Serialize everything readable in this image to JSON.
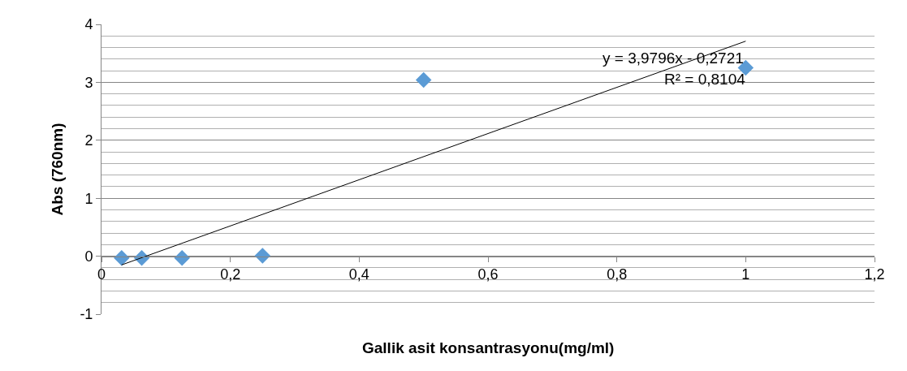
{
  "chart_data": {
    "type": "scatter",
    "xlabel": "Gallik asit konsantrasyonu(mg/ml)",
    "ylabel": "Abs (760nm)",
    "series": [
      {
        "color": "#5b9bd5",
        "marker": "diamond",
        "x": [
          0.03125,
          0.0625,
          0.125,
          0.25,
          0.5,
          1
        ],
        "values": [
          -0.03,
          -0.03,
          -0.03,
          0.01,
          3.04,
          3.25
        ]
      },
      {
        "type": "line",
        "color": "#000000",
        "marker": "none",
        "x": [
          0.03125,
          1
        ],
        "values": [
          -0.15,
          3.71
        ]
      }
    ],
    "annotations": [
      "y = 3,9796x - 0,2721",
      "R² = 0,8104"
    ],
    "xlim": [
      0,
      1.2
    ],
    "xticks": [
      0,
      {
        "value": 0.2,
        "label": "0,2"
      },
      {
        "value": 0.4,
        "label": "0,4"
      },
      {
        "value": 0.6,
        "label": "0,6"
      },
      {
        "value": 0.8,
        "label": "0,8"
      },
      1,
      {
        "value": 1.2,
        "label": "1,2"
      }
    ],
    "ylim": [
      -1,
      4
    ],
    "yticks": [
      -1,
      0,
      1,
      2,
      3,
      4
    ],
    "grid": "y",
    "legend": false
  }
}
